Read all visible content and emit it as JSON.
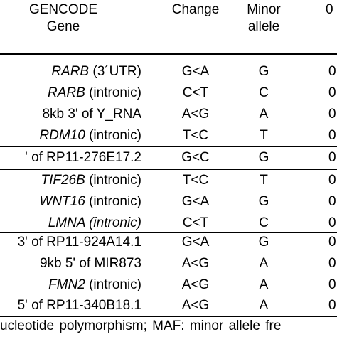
{
  "header": {
    "gene_line1": "GENCODE",
    "gene_line2": "Gene",
    "change": "Change",
    "minor_line1": "Minor",
    "minor_line2": "allele",
    "maf": "0"
  },
  "rows": [
    {
      "gene_italic": "RARB",
      "gene_rest": " (3´UTR)",
      "change": "G<A",
      "minor": "G",
      "maf": "0"
    },
    {
      "gene_italic": "RARB",
      "gene_rest": " (intronic)",
      "change": "C<T",
      "minor": "C",
      "maf": "0"
    },
    {
      "gene_italic": "",
      "gene_rest": "8kb 3' of Y_RNA",
      "change": "A<G",
      "minor": "A",
      "maf": "0"
    },
    {
      "gene_italic": "RDM10",
      "gene_rest": " (intronic)",
      "change": "T<C",
      "minor": "T",
      "maf": "0"
    },
    {
      "gene_italic": "",
      "gene_rest": "' of RP11-276E17.2",
      "change": "G<C",
      "minor": "G",
      "maf": "0"
    },
    {
      "gene_italic": "TIF26B",
      "gene_rest": " (intronic)",
      "change": "T<C",
      "minor": "T",
      "maf": "0"
    },
    {
      "gene_italic": "WNT16",
      "gene_rest": " (intronic)",
      "change": "G<A",
      "minor": "G",
      "maf": "0"
    },
    {
      "gene_italic": "LMNA (intronic)",
      "gene_rest": "",
      "change": "C<T",
      "minor": "C",
      "maf": "0"
    },
    {
      "gene_italic": "",
      "gene_rest": "3' of RP11-924A14.1",
      "change": "G<A",
      "minor": "G",
      "maf": "0"
    },
    {
      "gene_italic": "",
      "gene_rest": "9kb 5' of MIR873",
      "change": "A<G",
      "minor": "A",
      "maf": "0"
    },
    {
      "gene_italic": "FMN2",
      "gene_rest": " (intronic)",
      "change": "A<G",
      "minor": "A",
      "maf": "0"
    },
    {
      "gene_italic": "",
      "gene_rest": "5' of RP11-340B18.1",
      "change": "A<G",
      "minor": "A",
      "maf": "0"
    }
  ],
  "footnote": "ucleotide polymorphism; MAF: minor allele fre"
}
